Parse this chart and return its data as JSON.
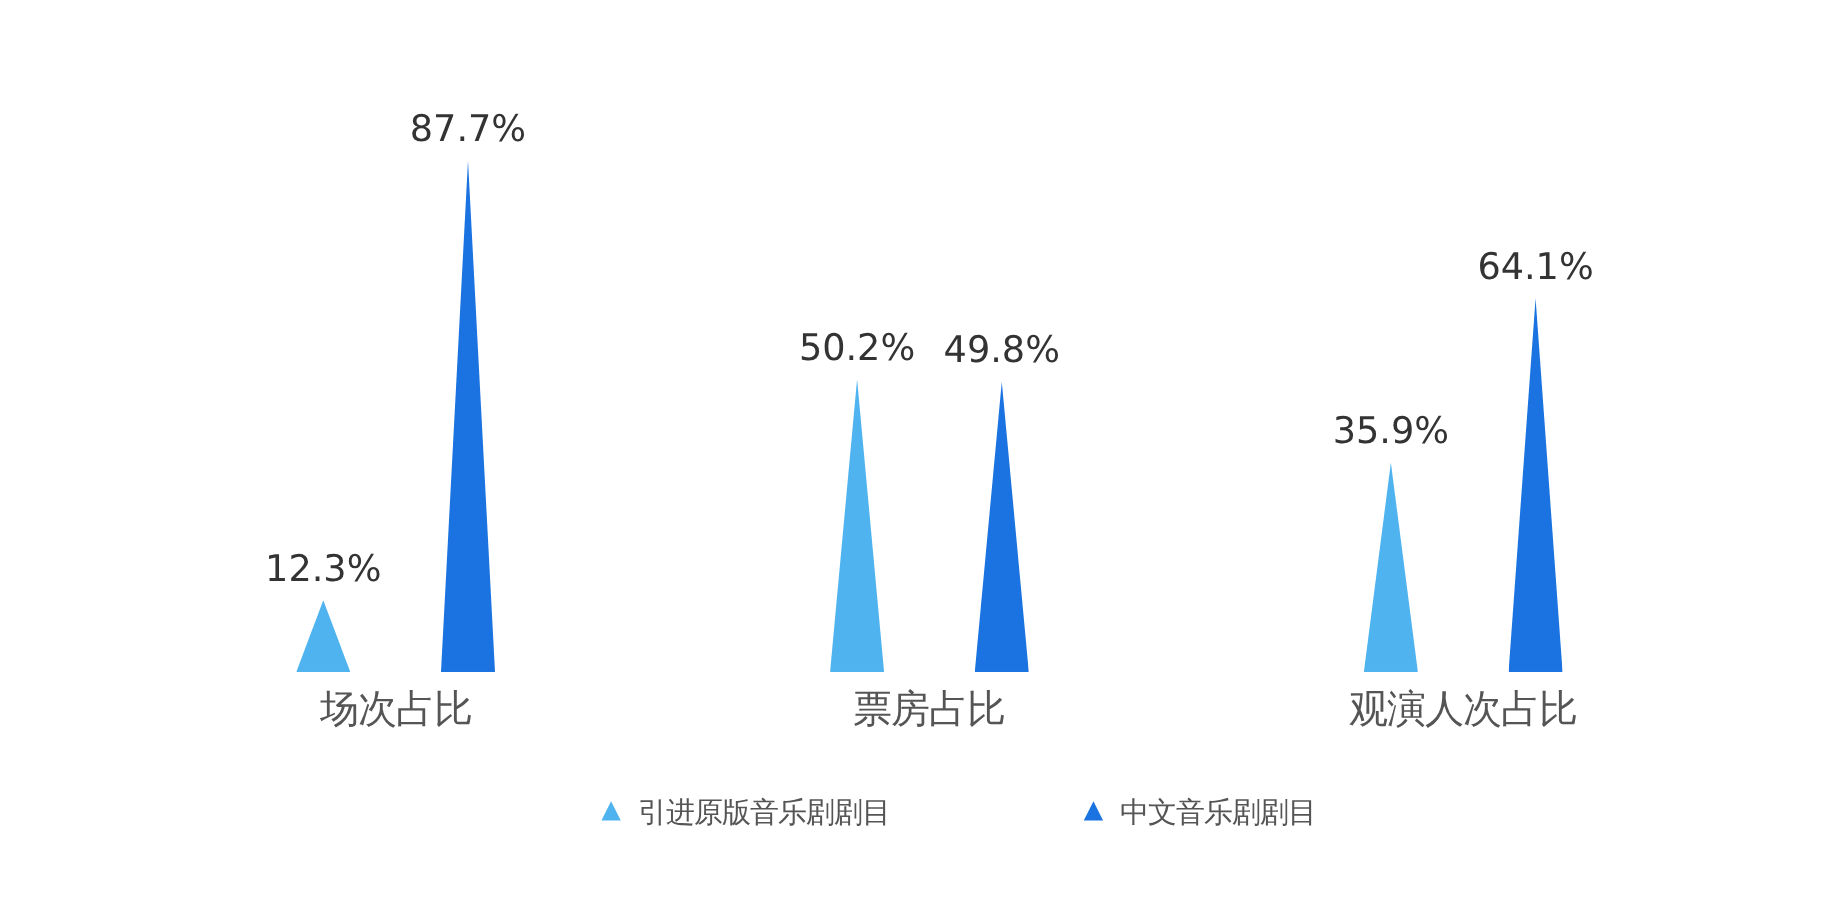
{
  "chart_data": {
    "type": "bar",
    "categories": [
      "场次占比",
      "票房占比",
      "观演人次占比"
    ],
    "series": [
      {
        "name": "引进原版音乐剧剧目",
        "color": "#4fb3ef",
        "values": [
          12.3,
          50.2,
          35.9
        ],
        "value_labels": [
          "12.3%",
          "50.2%",
          "35.9%"
        ]
      },
      {
        "name": "中文音乐剧剧目",
        "color": "#1a73e0",
        "values": [
          87.7,
          49.8,
          64.1
        ],
        "value_labels": [
          "87.7%",
          "49.8%",
          "64.1%"
        ]
      }
    ],
    "legend": "bottom",
    "tick_labels": "x"
  }
}
